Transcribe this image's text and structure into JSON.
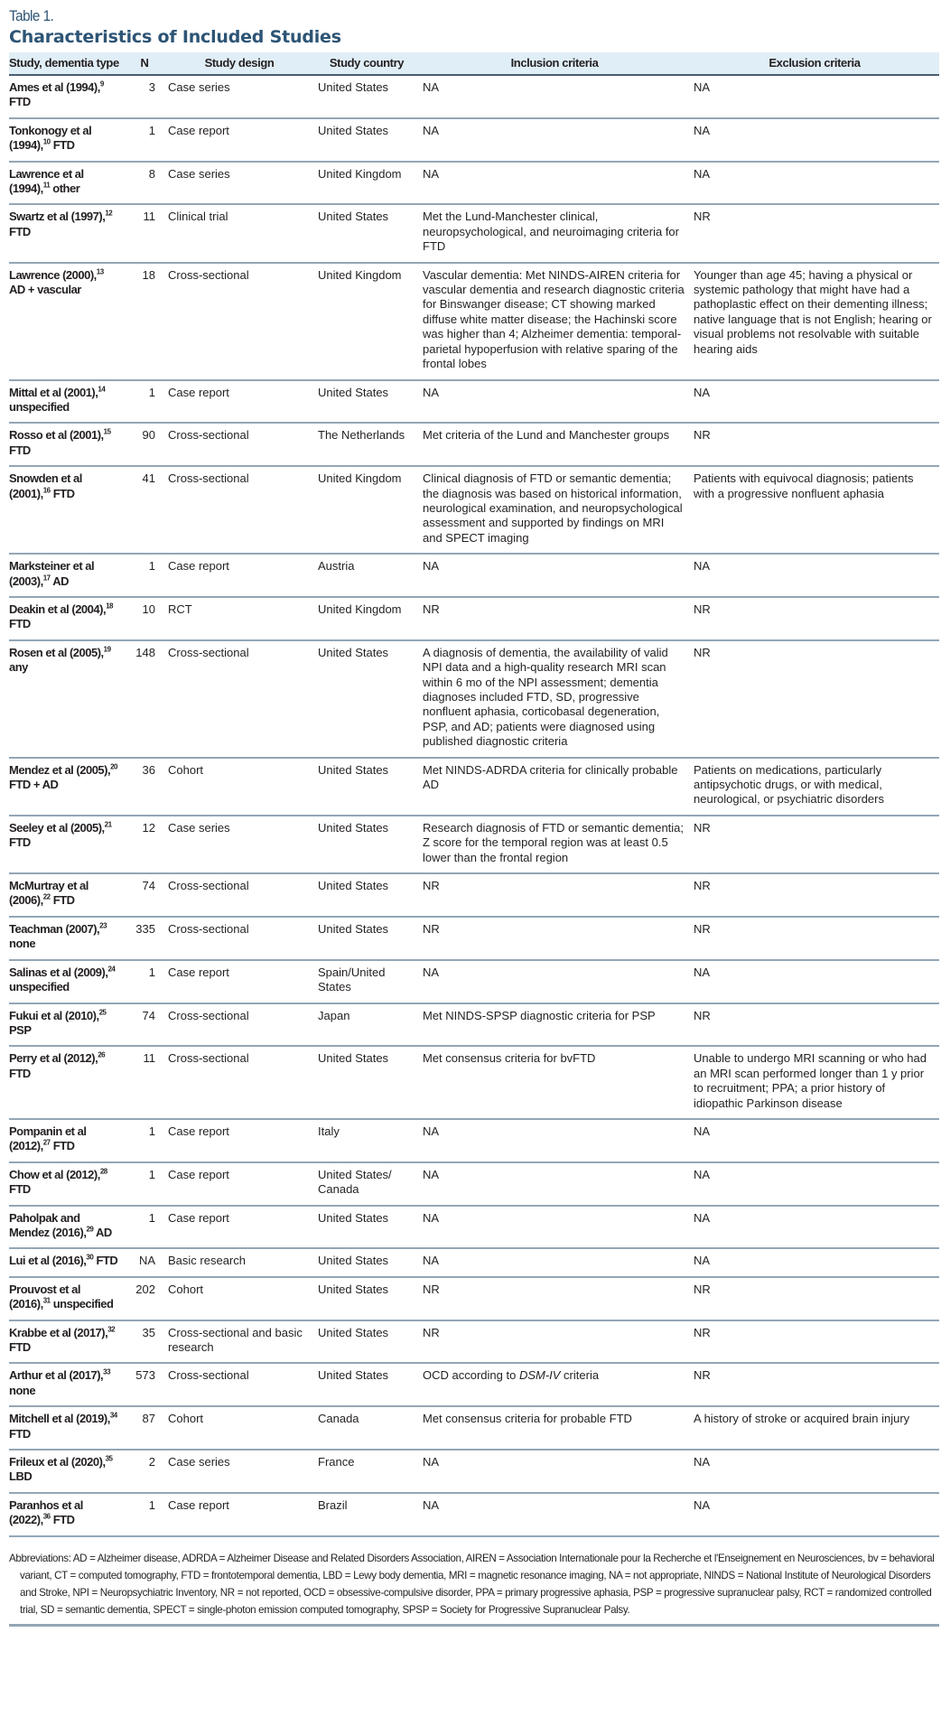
{
  "table_label": "Table 1.",
  "title": "Characteristics of Included Studies",
  "header_color": "#e0eef7",
  "title_color": "#2d5475",
  "columns": [
    "Study, dementia type",
    "N",
    "Study design",
    "Study country",
    "Inclusion criteria",
    "Exclusion criteria"
  ],
  "rows": [
    {
      "study": "Ames et al (1994),",
      "ref": "9",
      "type": " FTD",
      "n": "3",
      "design": "Case series",
      "country": "United States",
      "inclusion": "NA",
      "exclusion": "NA"
    },
    {
      "study": "Tonkonogy et al (1994),",
      "ref": "10",
      "type": " FTD",
      "n": "1",
      "design": "Case report",
      "country": "United States",
      "inclusion": "NA",
      "exclusion": "NA"
    },
    {
      "study": "Lawrence et al (1994),",
      "ref": "11",
      "type": " other",
      "n": "8",
      "design": "Case series",
      "country": "United Kingdom",
      "inclusion": "NA",
      "exclusion": "NA"
    },
    {
      "study": "Swartz et al (1997),",
      "ref": "12",
      "type": " FTD",
      "n": "11",
      "design": "Clinical trial",
      "country": "United States",
      "inclusion": "Met the Lund-Manchester clinical, neuropsychological, and neuroimaging criteria for FTD",
      "exclusion": "NR"
    },
    {
      "study": "Lawrence (2000),",
      "ref": "13",
      "type": " AD + vascular",
      "n": "18",
      "design": "Cross-sectional",
      "country": "United Kingdom",
      "inclusion": "Vascular dementia: Met NINDS-AIREN criteria for vascular dementia and research diagnostic criteria for Binswanger disease; CT showing marked diffuse white matter disease; the Hachinski score was higher than 4; Alzheimer dementia: temporal-parietal hypoperfusion with relative sparing of the frontal lobes",
      "exclusion": "Younger than age 45; having a physical or systemic pathology that might have had a pathoplastic effect on their dementing illness; native language that is not English; hearing or visual problems not resolvable with suitable hearing aids"
    },
    {
      "study": "Mittal et al (2001),",
      "ref": "14",
      "type": " unspecified",
      "n": "1",
      "design": "Case report",
      "country": "United States",
      "inclusion": "NA",
      "exclusion": "NA"
    },
    {
      "study": "Rosso et al (2001),",
      "ref": "15",
      "type": " FTD",
      "n": "90",
      "design": "Cross-sectional",
      "country": "The Netherlands",
      "inclusion": "Met criteria of the Lund and Manchester groups",
      "exclusion": "NR"
    },
    {
      "study": "Snowden et al (2001),",
      "ref": "16",
      "type": " FTD",
      "n": "41",
      "design": "Cross-sectional",
      "country": "United Kingdom",
      "inclusion": "Clinical diagnosis of FTD or semantic dementia; the diagnosis was based on historical information, neurological examination, and neuropsychological assessment and supported by findings on MRI and SPECT imaging",
      "exclusion": "Patients with equivocal diagnosis; patients with a progressive nonfluent aphasia"
    },
    {
      "study": "Marksteiner et al (2003),",
      "ref": "17",
      "type": " AD",
      "n": "1",
      "design": "Case report",
      "country": "Austria",
      "inclusion": "NA",
      "exclusion": "NA"
    },
    {
      "study": "Deakin et al (2004),",
      "ref": "18",
      "type": " FTD",
      "n": "10",
      "design": "RCT",
      "country": "United Kingdom",
      "inclusion": "NR",
      "exclusion": "NR"
    },
    {
      "study": "Rosen et al (2005),",
      "ref": "19",
      "type": " any",
      "n": "148",
      "design": "Cross-sectional",
      "country": "United States",
      "inclusion": "A diagnosis of dementia, the availability of valid NPI data and a high-quality research MRI scan within 6 mo of the NPI assessment; dementia diagnoses included FTD, SD, progressive nonfluent aphasia, corticobasal degeneration, PSP, and AD; patients were diagnosed using published diagnostic criteria",
      "exclusion": "NR"
    },
    {
      "study": "Mendez et al (2005),",
      "ref": "20",
      "type": " FTD + AD",
      "n": "36",
      "design": "Cohort",
      "country": "United States",
      "inclusion": "Met NINDS-ADRDA criteria for clinically probable AD",
      "exclusion": "Patients on medications, particularly antipsychotic drugs, or with medical, neurological, or psychiatric disorders"
    },
    {
      "study": "Seeley et al (2005),",
      "ref": "21",
      "type": " FTD",
      "n": "12",
      "design": "Case series",
      "country": "United States",
      "inclusion": "Research diagnosis of FTD or semantic dementia; Z score for the temporal region was at least 0.5 lower than the frontal region",
      "exclusion": "NR"
    },
    {
      "study": "McMurtray et al (2006),",
      "ref": "22",
      "type": " FTD",
      "n": "74",
      "design": "Cross-sectional",
      "country": "United States",
      "inclusion": "NR",
      "exclusion": "NR"
    },
    {
      "study": "Teachman (2007),",
      "ref": "23",
      "type": " none",
      "n": "335",
      "design": "Cross-sectional",
      "country": "United States",
      "inclusion": "NR",
      "exclusion": "NR"
    },
    {
      "study": "Salinas et al (2009),",
      "ref": "24",
      "type": " unspecified",
      "n": "1",
      "design": "Case report",
      "country": "Spain/United States",
      "inclusion": "NA",
      "exclusion": "NA"
    },
    {
      "study": "Fukui et al (2010),",
      "ref": "25",
      "type": " PSP",
      "n": "74",
      "design": "Cross-sectional",
      "country": "Japan",
      "inclusion": "Met NINDS-SPSP diagnostic criteria for PSP",
      "exclusion": "NR"
    },
    {
      "study": "Perry et al (2012),",
      "ref": "26",
      "type": " FTD",
      "n": "11",
      "design": "Cross-sectional",
      "country": "United States",
      "inclusion": "Met consensus criteria for bvFTD",
      "exclusion": "Unable to undergo MRI scanning or who had an MRI scan performed longer than 1 y prior to recruitment; PPA; a prior history of idiopathic Parkinson disease"
    },
    {
      "study": "Pompanin et al (2012),",
      "ref": "27",
      "type": " FTD",
      "n": "1",
      "design": "Case report",
      "country": "Italy",
      "inclusion": "NA",
      "exclusion": "NA"
    },
    {
      "study": "Chow et al (2012),",
      "ref": "28",
      "type": " FTD",
      "n": "1",
      "design": "Case report",
      "country": "United States/ Canada",
      "inclusion": "NA",
      "exclusion": "NA"
    },
    {
      "study": "Paholpak and Mendez (2016),",
      "ref": "29",
      "type": " AD",
      "n": "1",
      "design": "Case report",
      "country": "United States",
      "inclusion": "NA",
      "exclusion": "NA"
    },
    {
      "study": "Lui et al (2016),",
      "ref": "30",
      "type": " FTD",
      "n": "NA",
      "design": "Basic research",
      "country": "United States",
      "inclusion": "NA",
      "exclusion": "NA"
    },
    {
      "study": "Prouvost et al (2016),",
      "ref": "31",
      "type": " unspecified",
      "n": "202",
      "design": "Cohort",
      "country": "United States",
      "inclusion": "NR",
      "exclusion": "NR"
    },
    {
      "study": "Krabbe et al (2017),",
      "ref": "32",
      "type": " FTD",
      "n": "35",
      "design": "Cross-sectional and basic research",
      "country": "United States",
      "inclusion": "NR",
      "exclusion": "NR"
    },
    {
      "study": "Arthur et al (2017),",
      "ref": "33",
      "type": " none",
      "n": "573",
      "design": "Cross-sectional",
      "country": "United States",
      "inclusion": "OCD according to ",
      "inclusion_italic": "DSM-IV",
      "inclusion_post": " criteria",
      "exclusion": "NR"
    },
    {
      "study": "Mitchell et al (2019),",
      "ref": "34",
      "type": " FTD",
      "n": "87",
      "design": "Cohort",
      "country": "Canada",
      "inclusion": "Met consensus criteria for probable FTD",
      "exclusion": "A history of stroke or acquired brain injury"
    },
    {
      "study": "Frileux et al (2020),",
      "ref": "35",
      "type": " LBD",
      "n": "2",
      "design": "Case series",
      "country": "France",
      "inclusion": "NA",
      "exclusion": "NA"
    },
    {
      "study": "Paranhos et al (2022),",
      "ref": "36",
      "type": " FTD",
      "n": "1",
      "design": "Case report",
      "country": "Brazil",
      "inclusion": "NA",
      "exclusion": "NA"
    }
  ],
  "footnote": "Abbreviations: AD = Alzheimer disease, ADRDA = Alzheimer Disease and Related Disorders Association, AIREN = Association Internationale pour la Recherche et l'Enseignement en Neurosciences, bv = behavioral variant, CT = computed tomography, FTD = frontotemporal dementia, LBD = Lewy body dementia, MRI = magnetic resonance imaging, NA = not appropriate, NINDS = National Institute of Neurological Disorders and Stroke, NPI = Neuropsychiatric Inventory, NR = not reported, OCD = obsessive-compulsive disorder, PPA = primary progressive aphasia, PSP = progressive supranuclear palsy, RCT = randomized controlled trial, SD = semantic dementia, SPECT = single-photon emission computed tomography, SPSP = Society for Progressive Supranuclear Palsy."
}
